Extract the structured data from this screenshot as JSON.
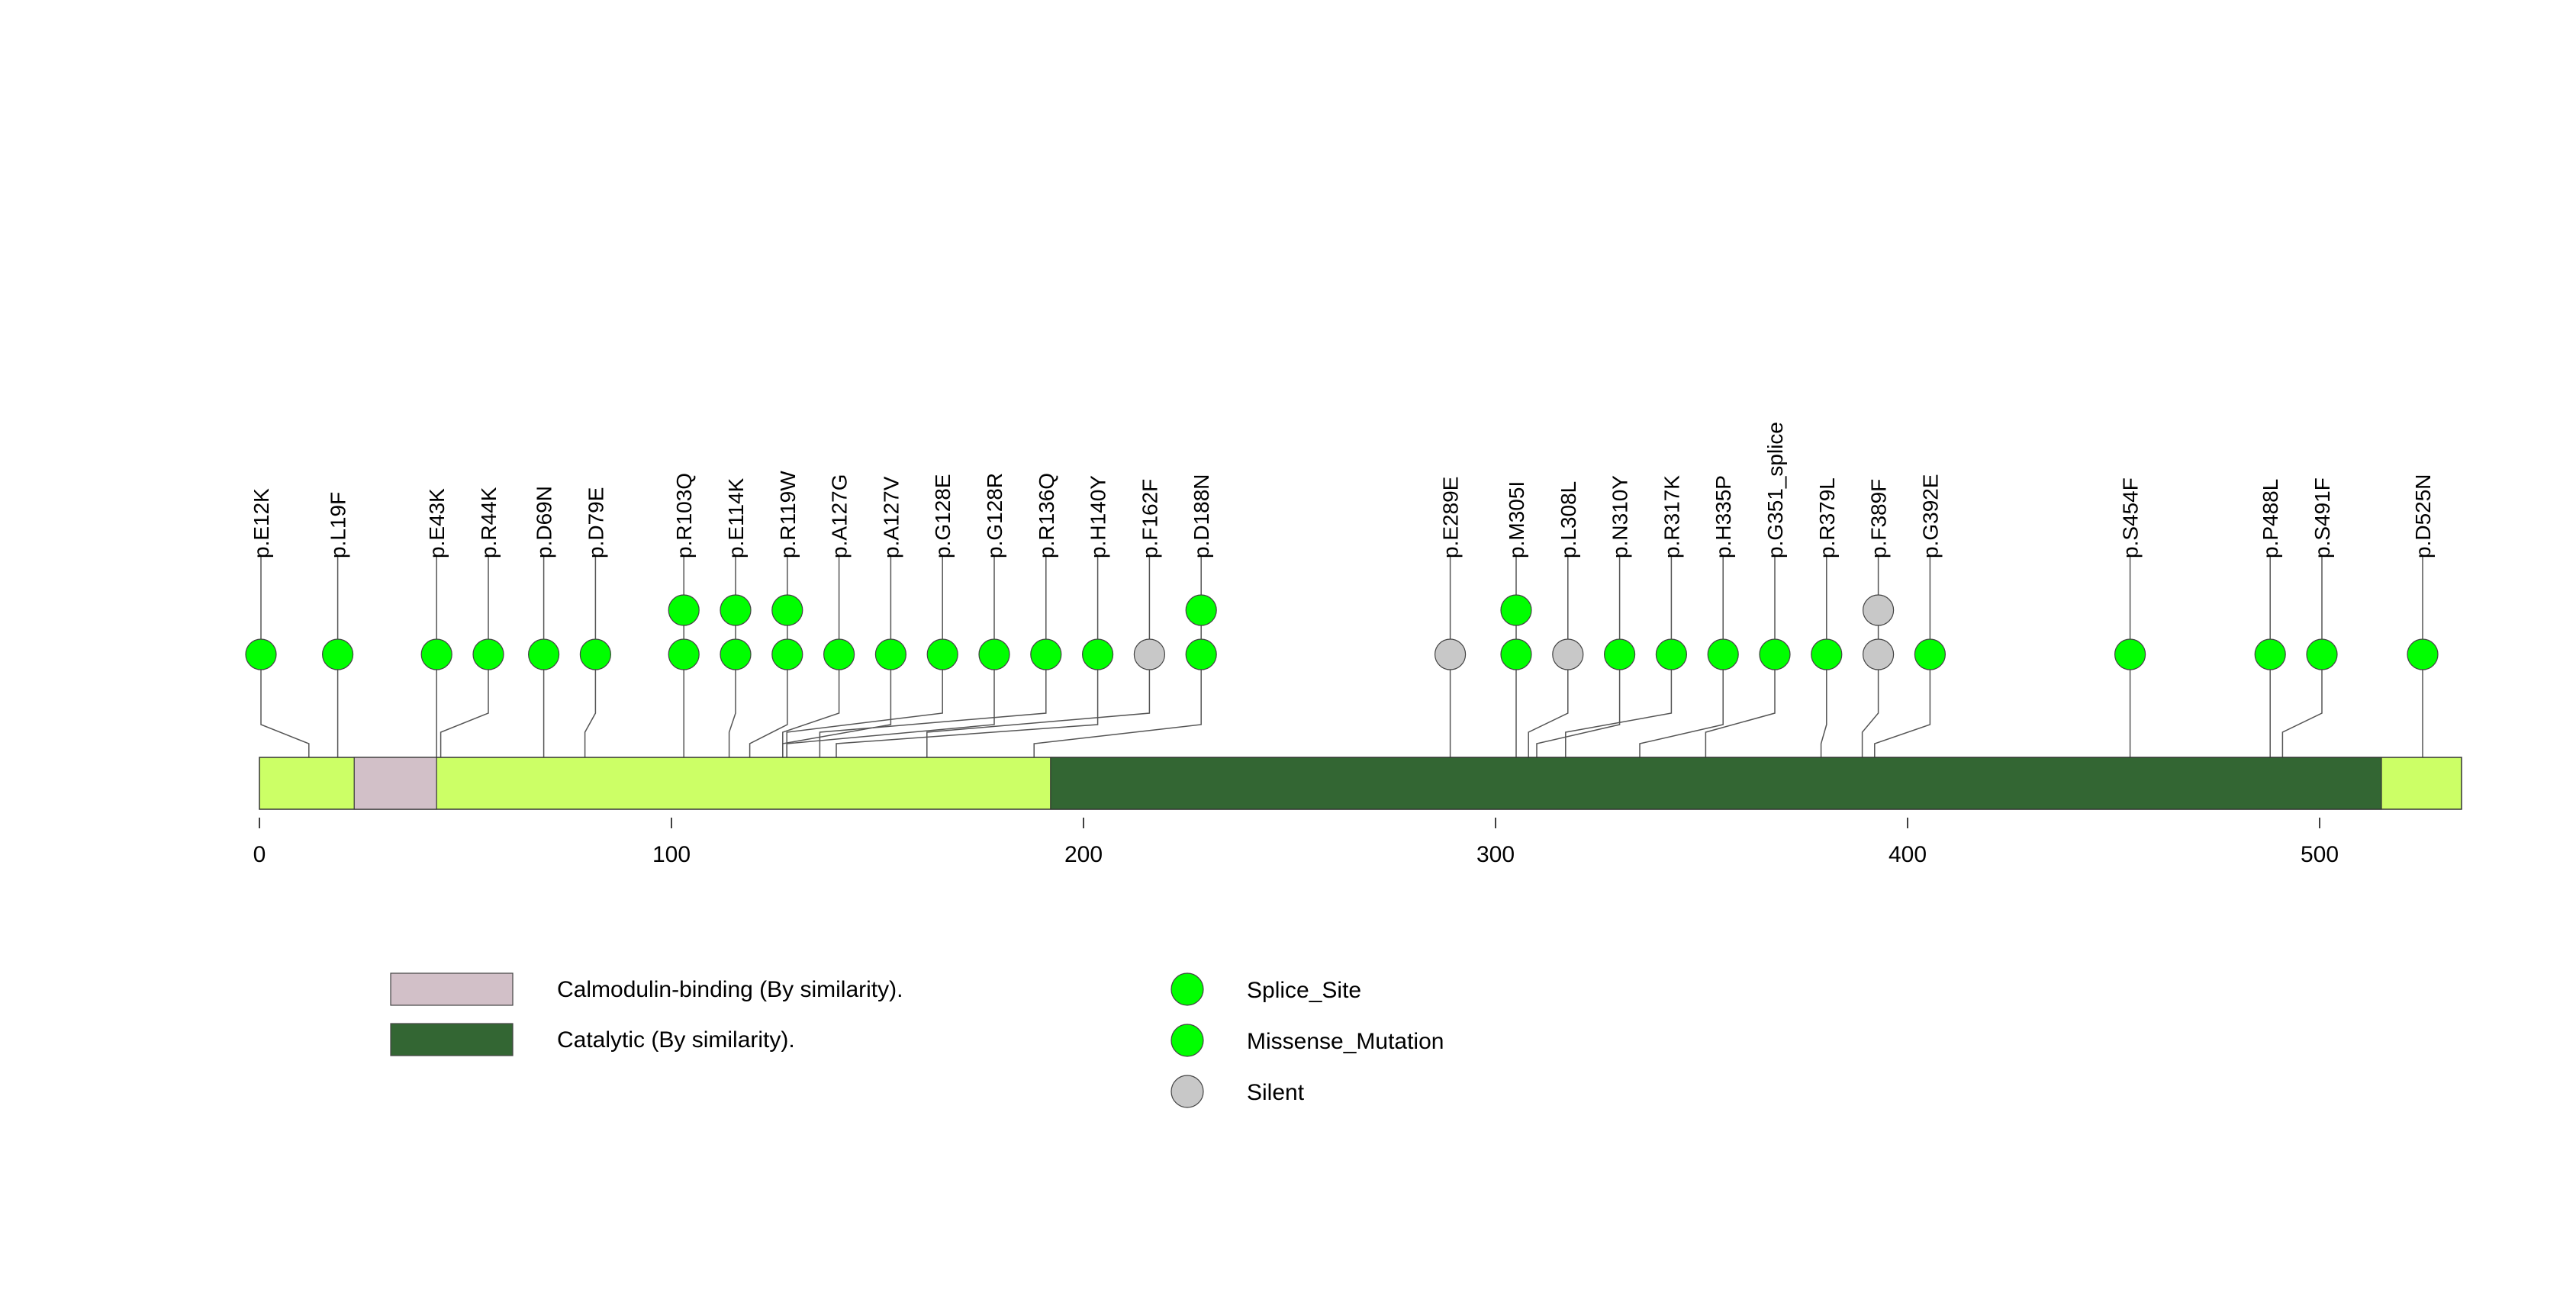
{
  "chart_data": {
    "type": "lollipop",
    "protein_length": 535,
    "x_axis": {
      "min": 0,
      "max": 535,
      "ticks": [
        0,
        100,
        200,
        300,
        400,
        500
      ]
    },
    "colors": {
      "backbone": "#ccff66",
      "calmodulin": "#d2c0c8",
      "catalytic": "#336633",
      "splice_site": "#00ff00",
      "missense": "#00ff00",
      "silent": "#c8c8c8",
      "stem": "#555555"
    },
    "domains": [
      {
        "name": "Calmodulin-binding (By similarity).",
        "start": 23,
        "end": 43,
        "color_key": "calmodulin"
      },
      {
        "name": "Catalytic (By similarity).",
        "start": 192,
        "end": 515,
        "color_key": "catalytic"
      }
    ],
    "mutations": [
      {
        "label": "p.E12K",
        "position": 12,
        "markers": [
          "missense"
        ]
      },
      {
        "label": "p.L19F",
        "position": 19,
        "markers": [
          "missense"
        ]
      },
      {
        "label": "p.E43K",
        "position": 43,
        "markers": [
          "missense"
        ]
      },
      {
        "label": "p.R44K",
        "position": 44,
        "markers": [
          "missense"
        ]
      },
      {
        "label": "p.D69N",
        "position": 69,
        "markers": [
          "missense"
        ]
      },
      {
        "label": "p.D79E",
        "position": 79,
        "markers": [
          "missense"
        ]
      },
      {
        "label": "p.R103Q",
        "position": 103,
        "markers": [
          "missense",
          "missense"
        ]
      },
      {
        "label": "p.E114K",
        "position": 114,
        "markers": [
          "missense",
          "missense"
        ]
      },
      {
        "label": "p.R119W",
        "position": 119,
        "markers": [
          "missense",
          "missense"
        ]
      },
      {
        "label": "p.A127G",
        "position": 127,
        "markers": [
          "missense"
        ]
      },
      {
        "label": "p.A127V",
        "position": 127,
        "markers": [
          "missense"
        ]
      },
      {
        "label": "p.G128E",
        "position": 128,
        "markers": [
          "missense"
        ]
      },
      {
        "label": "p.G128R",
        "position": 128,
        "markers": [
          "missense"
        ]
      },
      {
        "label": "p.R136Q",
        "position": 136,
        "markers": [
          "missense"
        ]
      },
      {
        "label": "p.H140Y",
        "position": 140,
        "markers": [
          "missense"
        ]
      },
      {
        "label": "p.F162F",
        "position": 162,
        "markers": [
          "silent"
        ]
      },
      {
        "label": "p.D188N",
        "position": 188,
        "markers": [
          "missense",
          "missense"
        ]
      },
      {
        "label": "p.E289E",
        "position": 289,
        "markers": [
          "silent"
        ]
      },
      {
        "label": "p.M305I",
        "position": 305,
        "markers": [
          "missense",
          "missense"
        ]
      },
      {
        "label": "p.L308L",
        "position": 308,
        "markers": [
          "silent"
        ]
      },
      {
        "label": "p.N310Y",
        "position": 310,
        "markers": [
          "missense"
        ]
      },
      {
        "label": "p.R317K",
        "position": 317,
        "markers": [
          "missense"
        ]
      },
      {
        "label": "p.H335P",
        "position": 335,
        "markers": [
          "missense"
        ]
      },
      {
        "label": "p.G351_splice",
        "position": 351,
        "markers": [
          "splice"
        ]
      },
      {
        "label": "p.R379L",
        "position": 379,
        "markers": [
          "missense"
        ]
      },
      {
        "label": "p.F389F",
        "position": 389,
        "markers": [
          "silent",
          "silent"
        ]
      },
      {
        "label": "p.G392E",
        "position": 392,
        "markers": [
          "missense"
        ]
      },
      {
        "label": "p.S454F",
        "position": 454,
        "markers": [
          "missense"
        ]
      },
      {
        "label": "p.P488L",
        "position": 488,
        "markers": [
          "missense"
        ]
      },
      {
        "label": "p.S491F",
        "position": 491,
        "markers": [
          "missense"
        ]
      },
      {
        "label": "p.D525N",
        "position": 525,
        "markers": [
          "missense"
        ]
      }
    ],
    "legend": {
      "domains": [
        {
          "label": "Calmodulin-binding (By similarity).",
          "color_key": "calmodulin"
        },
        {
          "label": "Catalytic (By similarity).",
          "color_key": "catalytic"
        }
      ],
      "mutation_types": [
        {
          "label": "Splice_Site",
          "color_key": "splice_site"
        },
        {
          "label": "Missense_Mutation",
          "color_key": "missense"
        },
        {
          "label": "Silent",
          "color_key": "silent"
        }
      ]
    }
  }
}
